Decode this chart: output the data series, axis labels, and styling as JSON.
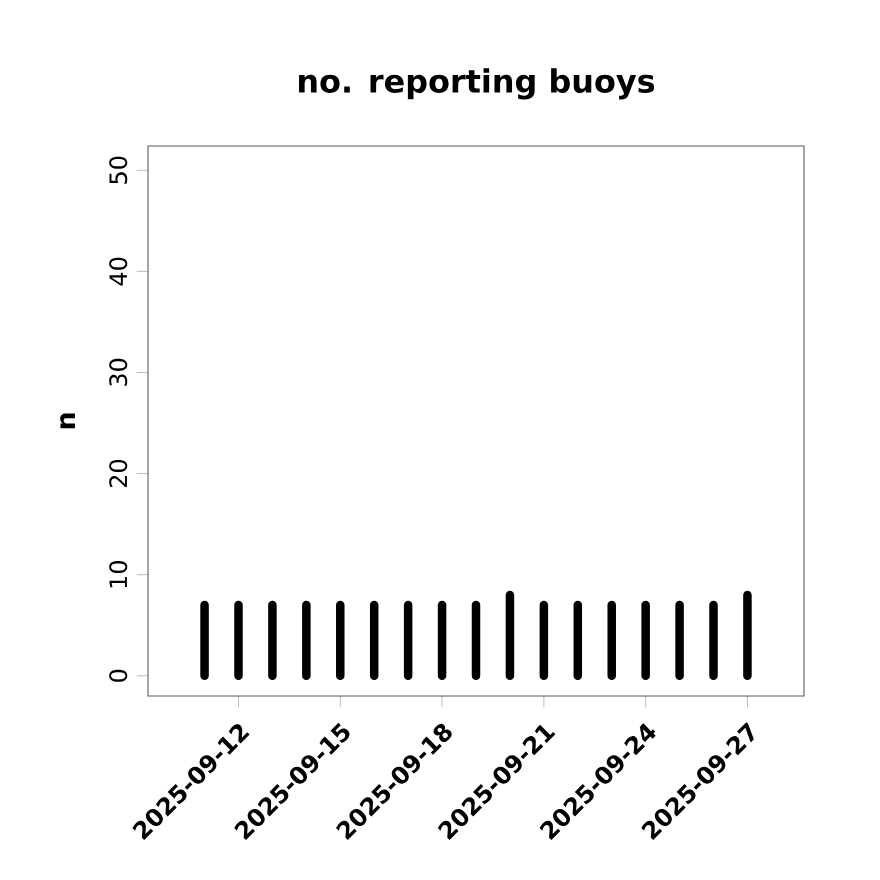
{
  "chart_data": {
    "type": "bar",
    "title": "no. reporting buoys",
    "ylabel": "n",
    "x": [
      "2025-09-11",
      "2025-09-12",
      "2025-09-13",
      "2025-09-14",
      "2025-09-15",
      "2025-09-16",
      "2025-09-17",
      "2025-09-18",
      "2025-09-19",
      "2025-09-20",
      "2025-09-21",
      "2025-09-22",
      "2025-09-23",
      "2025-09-24",
      "2025-09-25",
      "2025-09-26",
      "2025-09-27"
    ],
    "values": [
      7,
      7,
      7,
      7,
      7,
      7,
      7,
      7,
      7,
      8,
      7,
      7,
      7,
      7,
      7,
      7,
      8
    ],
    "color": "#000000",
    "xlim": [
      "2025-09-09T08:00",
      "2025-09-28T16:00"
    ],
    "xticks": [
      {
        "value": "2025-09-12",
        "label": "2025-09-12"
      },
      {
        "value": "2025-09-15",
        "label": "2025-09-15"
      },
      {
        "value": "2025-09-18",
        "label": "2025-09-18"
      },
      {
        "value": "2025-09-21",
        "label": "2025-09-21"
      },
      {
        "value": "2025-09-24",
        "label": "2025-09-24"
      },
      {
        "value": "2025-09-27",
        "label": "2025-09-27"
      }
    ],
    "ylim": [
      -2,
      52.4
    ],
    "yticks": [
      0,
      10,
      20,
      30,
      40,
      50
    ]
  }
}
